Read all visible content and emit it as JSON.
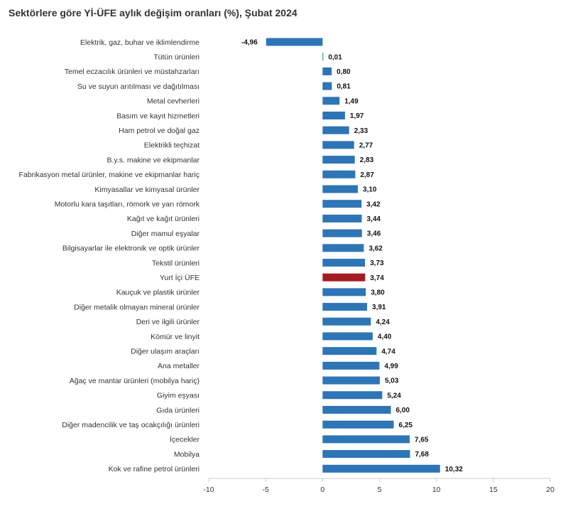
{
  "chart_data": {
    "type": "bar",
    "orientation": "horizontal",
    "title": "Sektörlere göre Yİ-ÜFE aylık değişim oranları (%), Şubat 2024",
    "categories": [
      "Elektrik, gaz, buhar ve iklimlendirme",
      "Tütün ürünleri",
      "Temel eczacılık ürünleri ve müstahzarları",
      "Su ve suyun arıtılması ve dağıtılması",
      "Metal cevherleri",
      "Basım ve kayıt hizmetleri",
      "Ham petrol ve doğal gaz",
      "Elektrikli teçhizat",
      "B.y.s. makine ve ekipmanlar",
      "Fabrikasyon metal ürünler, makine ve ekipmanlar hariç",
      "Kimyasallar ve kimyasal ürünler",
      "Motorlu kara taşıtları, römork ve yarı römork",
      "Kağıt ve kağıt ürünleri",
      "Diğer mamul eşyalar",
      "Bilgisayarlar ile elektronik ve optik ürünler",
      "Tekstil ürünleri",
      "Yurt İçi ÜFE",
      "Kauçuk ve plastik ürünler",
      "Diğer metalik olmayan mineral ürünler",
      "Deri ve ilgili ürünler",
      "Kömür ve linyit",
      "Diğer ulaşım araçları",
      "Ana metaller",
      "Ağaç ve mantar ürünleri (mobilya hariç)",
      "Giyim eşyası",
      "Gıda ürünleri",
      "Diğer madencilik ve taş ocakçılığı ürünleri",
      "İçecekler",
      "Mobilya",
      "Kok ve rafine petrol ürünleri"
    ],
    "values": [
      -4.96,
      0.01,
      0.8,
      0.81,
      1.49,
      1.97,
      2.33,
      2.77,
      2.83,
      2.87,
      3.1,
      3.42,
      3.44,
      3.46,
      3.62,
      3.73,
      3.74,
      3.8,
      3.91,
      4.24,
      4.4,
      4.74,
      4.99,
      5.03,
      5.24,
      6.0,
      6.25,
      7.65,
      7.68,
      10.32
    ],
    "value_labels": [
      "-4,96",
      "0,01",
      "0,80",
      "0,81",
      "1,49",
      "1,97",
      "2,33",
      "2,77",
      "2,83",
      "2,87",
      "3,10",
      "3,42",
      "3,44",
      "3,46",
      "3,62",
      "3,73",
      "3,74",
      "3,80",
      "3,91",
      "4,24",
      "4,40",
      "4,74",
      "4,99",
      "5,03",
      "5,24",
      "6,00",
      "6,25",
      "7,65",
      "7,68",
      "10,32"
    ],
    "highlight_category": "Yurt İçi ÜFE",
    "xlim": [
      -10,
      20
    ],
    "xticks": [
      -10,
      -5,
      0,
      5,
      10,
      15,
      20
    ],
    "xtick_labels": [
      "-10",
      "-5",
      "0",
      "5",
      "10",
      "15",
      "20"
    ],
    "xlabel": "",
    "ylabel": "",
    "grid": false,
    "legend": "none",
    "colors": {
      "bar": "#2e75b6",
      "highlight": "#a31c22",
      "axis": "#cccccc",
      "text": "#333333"
    }
  }
}
